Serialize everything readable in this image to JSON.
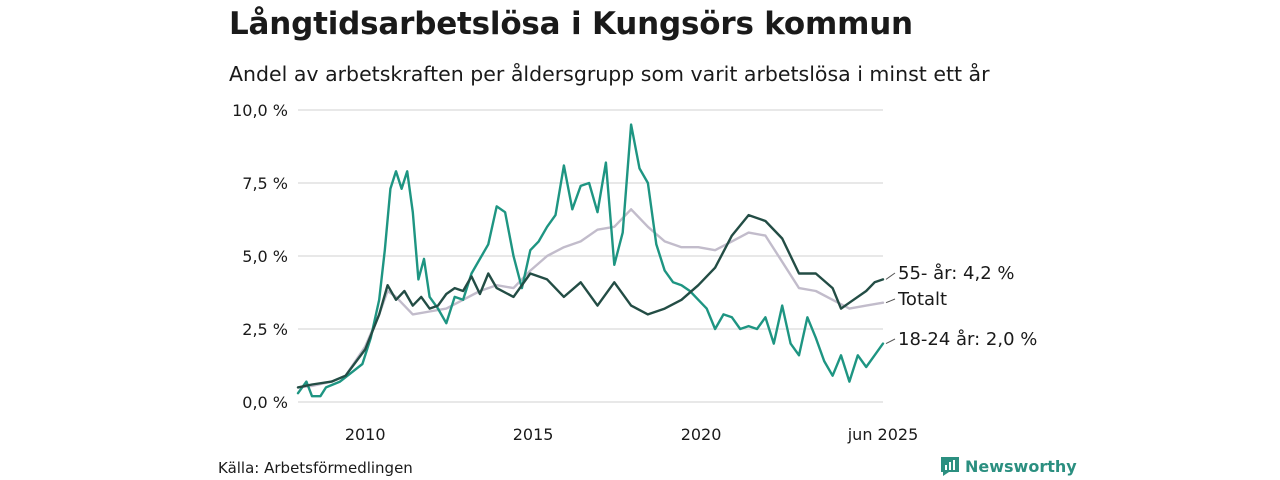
{
  "header": {
    "title": "Långtidsarbetslösa i Kungsörs kommun",
    "subtitle": "Andel av arbetskraften per åldersgrupp som varit arbetslösa i minst ett år"
  },
  "footer": {
    "source": "Källa: Arbetsförmedlingen",
    "brand": "Newsworthy"
  },
  "colors": {
    "youth": "#1e9582",
    "older": "#234d45",
    "total": "#c2bccb",
    "grid": "#d9d9d9",
    "brand": "#2b8f80"
  },
  "chart_data": {
    "type": "line",
    "title": "Långtidsarbetslösa i Kungsörs kommun",
    "subtitle": "Andel av arbetskraften per åldersgrupp som varit arbetslösa i minst ett år",
    "xlim": [
      "2008-01",
      "2025-06"
    ],
    "ylim": [
      0,
      10
    ],
    "y_ticks": [
      "0,0 %",
      "2,5 %",
      "5,0 %",
      "7,5 %",
      "10,0 %"
    ],
    "x_tick_labels": [
      "2010",
      "2015",
      "2020",
      "jun 2025"
    ],
    "grid": "horizontal",
    "series": [
      {
        "key": "older",
        "end_label": "55- år: 4,2 %",
        "points": [
          [
            "2008-01",
            0.5
          ],
          [
            "2008-06",
            0.6
          ],
          [
            "2009-01",
            0.7
          ],
          [
            "2009-06",
            0.9
          ],
          [
            "2010-01",
            1.8
          ],
          [
            "2010-06",
            3.0
          ],
          [
            "2010-09",
            4.0
          ],
          [
            "2010-12",
            3.5
          ],
          [
            "2011-03",
            3.8
          ],
          [
            "2011-06",
            3.3
          ],
          [
            "2011-09",
            3.6
          ],
          [
            "2011-12",
            3.2
          ],
          [
            "2012-03",
            3.3
          ],
          [
            "2012-06",
            3.7
          ],
          [
            "2012-09",
            3.9
          ],
          [
            "2012-12",
            3.8
          ],
          [
            "2013-03",
            4.3
          ],
          [
            "2013-06",
            3.7
          ],
          [
            "2013-09",
            4.4
          ],
          [
            "2013-12",
            3.9
          ],
          [
            "2014-06",
            3.6
          ],
          [
            "2014-12",
            4.4
          ],
          [
            "2015-06",
            4.2
          ],
          [
            "2015-12",
            3.6
          ],
          [
            "2016-06",
            4.1
          ],
          [
            "2016-12",
            3.3
          ],
          [
            "2017-06",
            4.1
          ],
          [
            "2017-12",
            3.3
          ],
          [
            "2018-06",
            3.0
          ],
          [
            "2018-12",
            3.2
          ],
          [
            "2019-06",
            3.5
          ],
          [
            "2019-12",
            4.0
          ],
          [
            "2020-06",
            4.6
          ],
          [
            "2020-12",
            5.7
          ],
          [
            "2021-06",
            6.4
          ],
          [
            "2021-12",
            6.2
          ],
          [
            "2022-06",
            5.6
          ],
          [
            "2022-12",
            4.4
          ],
          [
            "2023-06",
            4.4
          ],
          [
            "2023-12",
            3.9
          ],
          [
            "2024-03",
            3.2
          ],
          [
            "2024-06",
            3.4
          ],
          [
            "2024-12",
            3.8
          ],
          [
            "2025-03",
            4.1
          ],
          [
            "2025-06",
            4.2
          ]
        ]
      },
      {
        "key": "total",
        "end_label": "Totalt",
        "points": [
          [
            "2008-01",
            0.5
          ],
          [
            "2008-06",
            0.55
          ],
          [
            "2009-01",
            0.7
          ],
          [
            "2009-06",
            0.9
          ],
          [
            "2010-01",
            1.9
          ],
          [
            "2010-06",
            3.0
          ],
          [
            "2010-09",
            3.8
          ],
          [
            "2010-12",
            3.6
          ],
          [
            "2011-06",
            3.0
          ],
          [
            "2011-12",
            3.1
          ],
          [
            "2012-06",
            3.2
          ],
          [
            "2012-12",
            3.5
          ],
          [
            "2013-06",
            3.8
          ],
          [
            "2013-12",
            4.0
          ],
          [
            "2014-06",
            3.9
          ],
          [
            "2014-12",
            4.5
          ],
          [
            "2015-06",
            5.0
          ],
          [
            "2015-12",
            5.3
          ],
          [
            "2016-06",
            5.5
          ],
          [
            "2016-12",
            5.9
          ],
          [
            "2017-06",
            6.0
          ],
          [
            "2017-12",
            6.6
          ],
          [
            "2018-06",
            6.0
          ],
          [
            "2018-12",
            5.5
          ],
          [
            "2019-06",
            5.3
          ],
          [
            "2019-12",
            5.3
          ],
          [
            "2020-06",
            5.2
          ],
          [
            "2020-12",
            5.5
          ],
          [
            "2021-06",
            5.8
          ],
          [
            "2021-12",
            5.7
          ],
          [
            "2022-06",
            4.8
          ],
          [
            "2022-12",
            3.9
          ],
          [
            "2023-06",
            3.8
          ],
          [
            "2023-12",
            3.5
          ],
          [
            "2024-06",
            3.2
          ],
          [
            "2024-12",
            3.3
          ],
          [
            "2025-06",
            3.4
          ]
        ]
      },
      {
        "key": "youth",
        "end_label": "18-24 år: 2,0 %",
        "points": [
          [
            "2008-01",
            0.3
          ],
          [
            "2008-04",
            0.7
          ],
          [
            "2008-06",
            0.2
          ],
          [
            "2008-09",
            0.2
          ],
          [
            "2008-11",
            0.5
          ],
          [
            "2009-04",
            0.7
          ],
          [
            "2009-08",
            1.0
          ],
          [
            "2009-12",
            1.3
          ],
          [
            "2010-03",
            2.2
          ],
          [
            "2010-06",
            3.5
          ],
          [
            "2010-08",
            5.2
          ],
          [
            "2010-10",
            7.3
          ],
          [
            "2010-12",
            7.9
          ],
          [
            "2011-02",
            7.3
          ],
          [
            "2011-04",
            7.9
          ],
          [
            "2011-06",
            6.5
          ],
          [
            "2011-08",
            4.2
          ],
          [
            "2011-10",
            4.9
          ],
          [
            "2011-12",
            3.6
          ],
          [
            "2012-03",
            3.2
          ],
          [
            "2012-06",
            2.7
          ],
          [
            "2012-09",
            3.6
          ],
          [
            "2012-12",
            3.5
          ],
          [
            "2013-03",
            4.4
          ],
          [
            "2013-06",
            4.9
          ],
          [
            "2013-09",
            5.4
          ],
          [
            "2013-12",
            6.7
          ],
          [
            "2014-03",
            6.5
          ],
          [
            "2014-06",
            5.0
          ],
          [
            "2014-09",
            3.9
          ],
          [
            "2014-12",
            5.2
          ],
          [
            "2015-03",
            5.5
          ],
          [
            "2015-06",
            6.0
          ],
          [
            "2015-09",
            6.4
          ],
          [
            "2015-12",
            8.1
          ],
          [
            "2016-03",
            6.6
          ],
          [
            "2016-06",
            7.4
          ],
          [
            "2016-09",
            7.5
          ],
          [
            "2016-12",
            6.5
          ],
          [
            "2017-03",
            8.2
          ],
          [
            "2017-06",
            4.7
          ],
          [
            "2017-09",
            5.8
          ],
          [
            "2017-12",
            9.5
          ],
          [
            "2018-03",
            8.0
          ],
          [
            "2018-06",
            7.5
          ],
          [
            "2018-09",
            5.4
          ],
          [
            "2018-12",
            4.5
          ],
          [
            "2019-03",
            4.1
          ],
          [
            "2019-06",
            4.0
          ],
          [
            "2019-09",
            3.8
          ],
          [
            "2019-12",
            3.5
          ],
          [
            "2020-03",
            3.2
          ],
          [
            "2020-06",
            2.5
          ],
          [
            "2020-09",
            3.0
          ],
          [
            "2020-12",
            2.9
          ],
          [
            "2021-03",
            2.5
          ],
          [
            "2021-06",
            2.6
          ],
          [
            "2021-09",
            2.5
          ],
          [
            "2021-12",
            2.9
          ],
          [
            "2022-03",
            2.0
          ],
          [
            "2022-06",
            3.3
          ],
          [
            "2022-09",
            2.0
          ],
          [
            "2022-12",
            1.6
          ],
          [
            "2023-03",
            2.9
          ],
          [
            "2023-06",
            2.2
          ],
          [
            "2023-09",
            1.4
          ],
          [
            "2023-12",
            0.9
          ],
          [
            "2024-03",
            1.6
          ],
          [
            "2024-06",
            0.7
          ],
          [
            "2024-09",
            1.6
          ],
          [
            "2024-12",
            1.2
          ],
          [
            "2025-03",
            1.6
          ],
          [
            "2025-06",
            2.0
          ]
        ]
      }
    ]
  }
}
